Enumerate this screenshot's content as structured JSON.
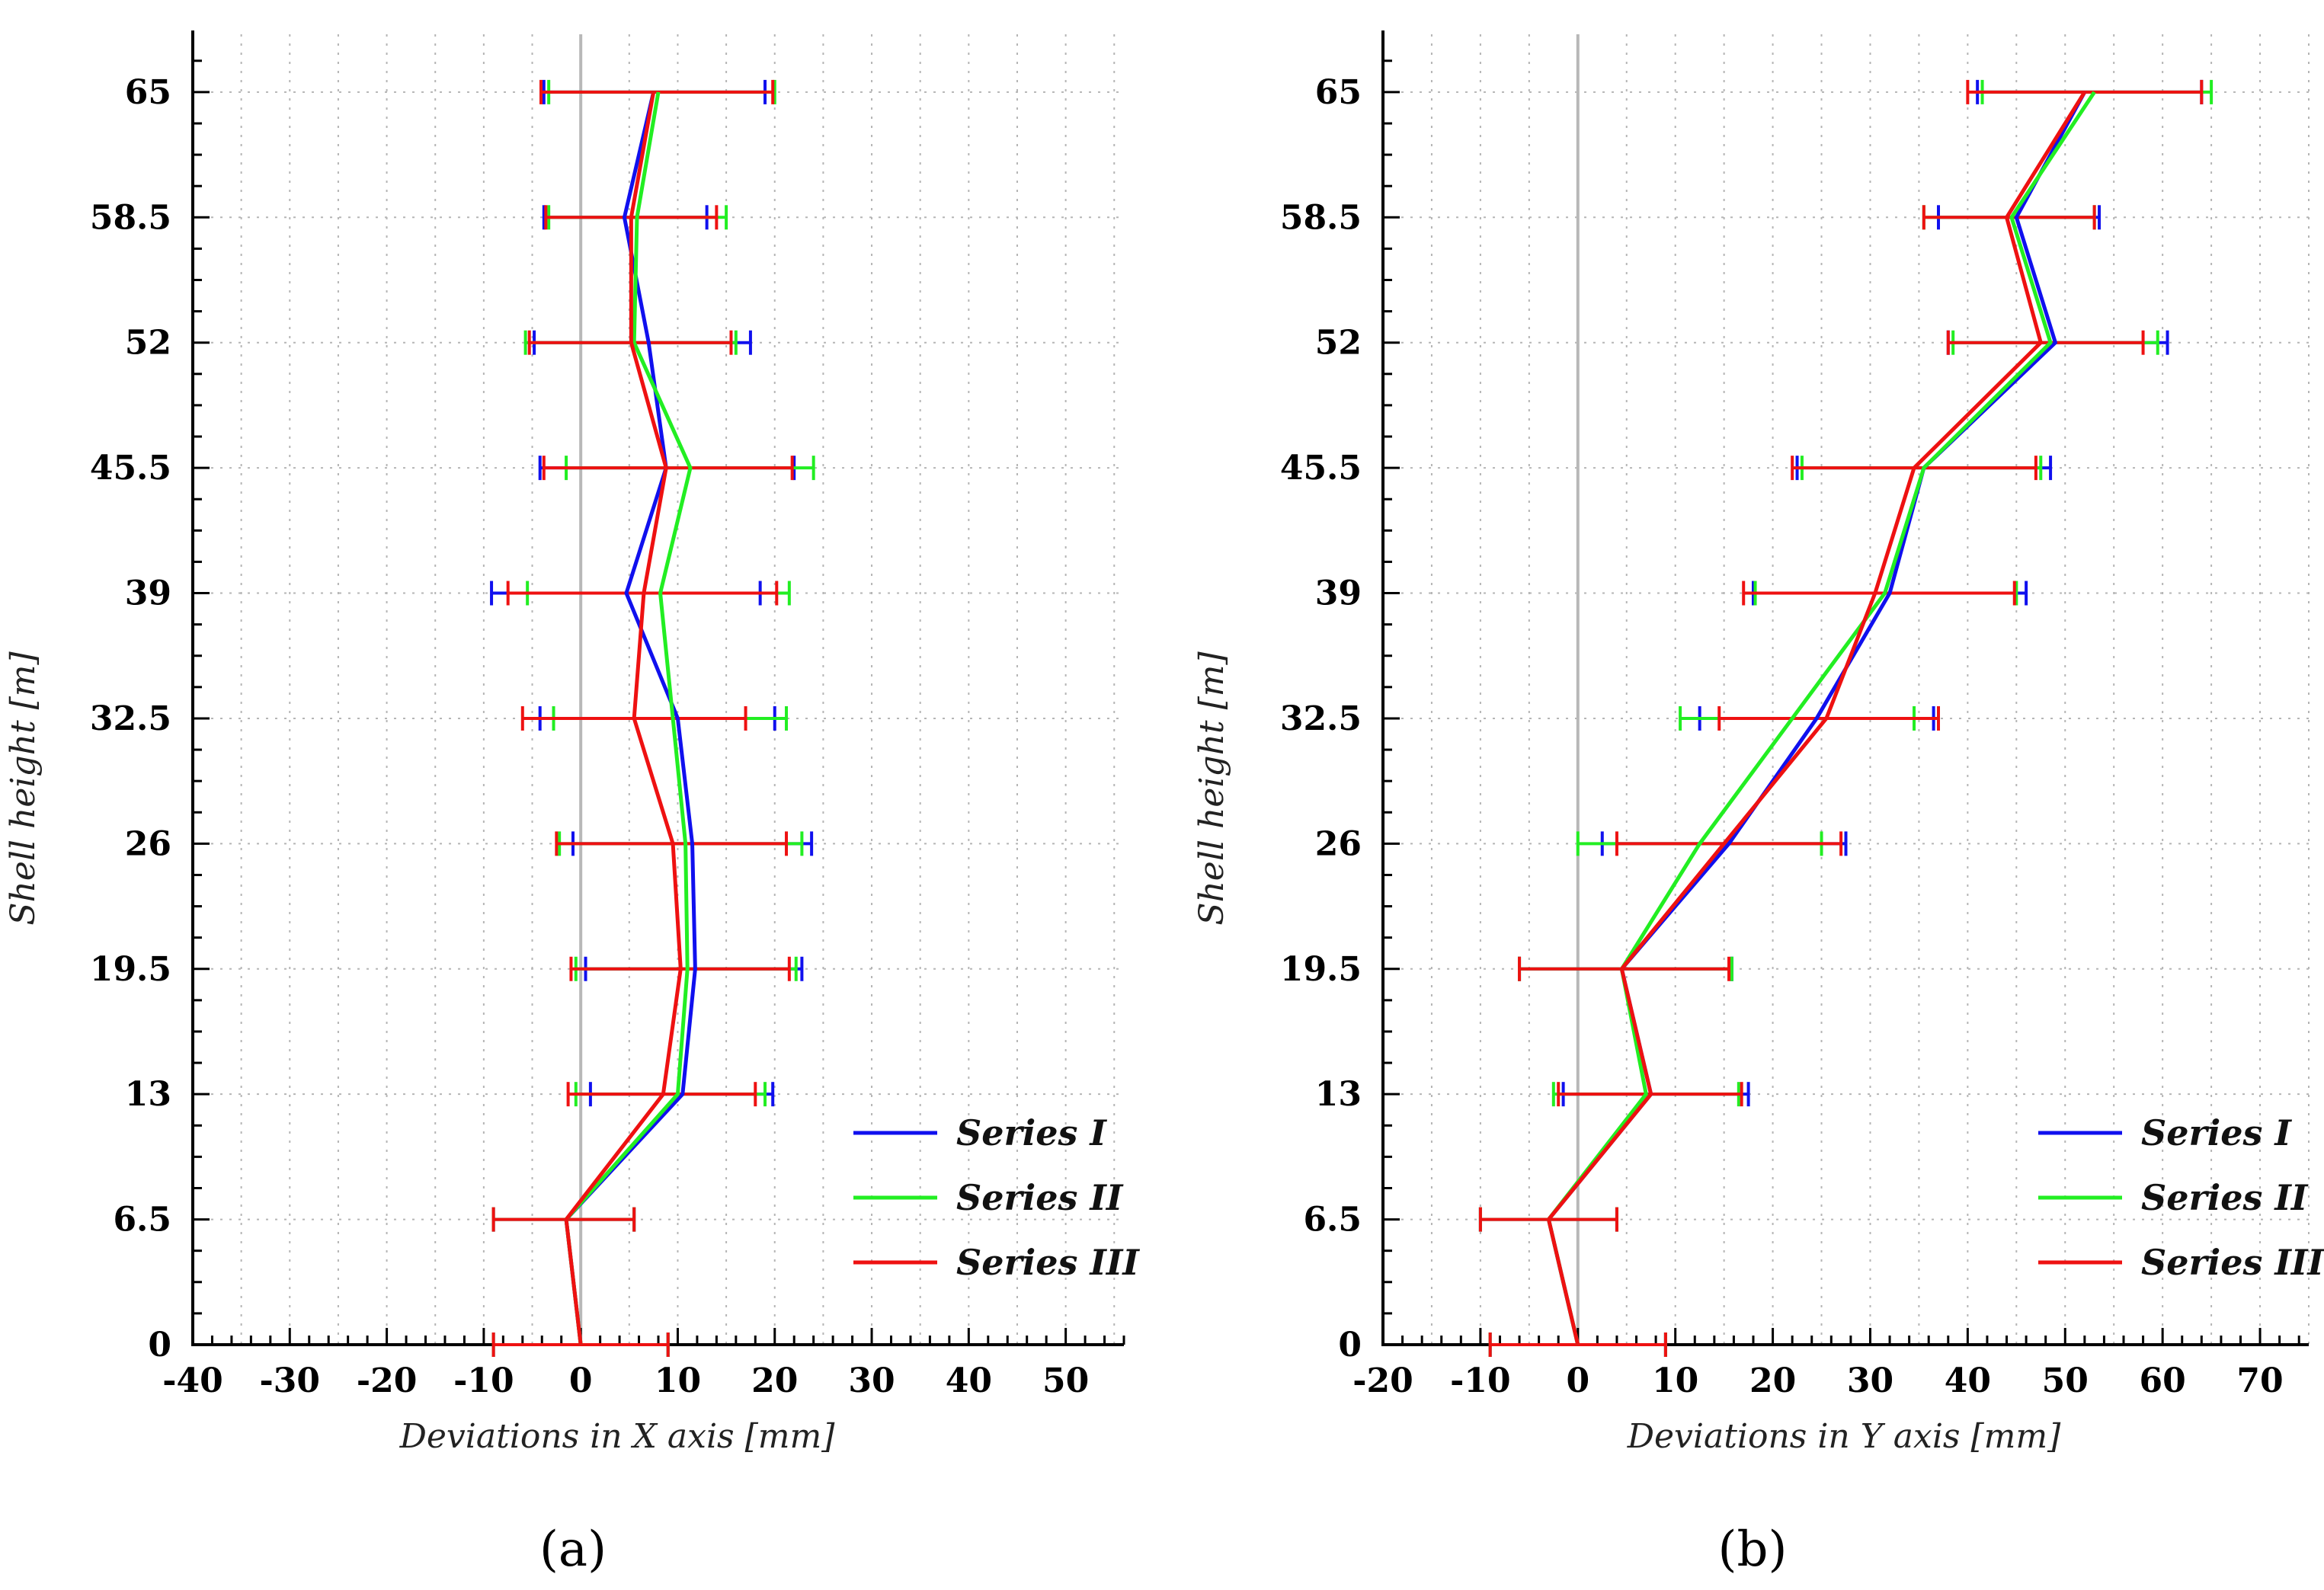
{
  "colors": {
    "series_1": "#1010ee",
    "series_2": "#22ee22",
    "series_3": "#ee1111"
  },
  "chart_data": [
    {
      "type": "line",
      "panel_label": "(a)",
      "xlabel": "Deviations in X axis  [mm]",
      "ylabel": "Shell height [m]",
      "xlim": [
        -40,
        56
      ],
      "ylim": [
        0,
        68
      ],
      "x_ticks": [
        -40,
        -30,
        -20,
        -10,
        0,
        10,
        20,
        30,
        40,
        50
      ],
      "x_tick_labels": [
        "-40",
        "-30",
        "-20",
        "-10",
        "0",
        "10",
        "20",
        "30",
        "40",
        "50"
      ],
      "y_ticks": [
        0,
        6.5,
        13,
        19.5,
        26,
        32.5,
        39,
        45.5,
        52,
        58.5,
        65
      ],
      "y_tick_labels": [
        "0",
        "6.5",
        "13",
        "19.5",
        "26",
        "32.5",
        "39",
        "45.5",
        "52",
        "58.5",
        "65"
      ],
      "legend_position": "bottom-right",
      "series": [
        {
          "name": "Series I",
          "y": [
            0,
            6.5,
            13,
            19.5,
            26,
            32.5,
            39,
            45.5,
            52,
            58.5,
            65
          ],
          "x": [
            0,
            -1.5,
            10.5,
            11.8,
            11.5,
            10,
            4.7,
            8.8,
            7,
            4.5,
            7.5
          ],
          "err_low": [
            -9,
            -9,
            1,
            0.5,
            -0.8,
            -4.2,
            -9.2,
            -4.2,
            -4.8,
            -3.8,
            -3.8
          ],
          "err_high": [
            9,
            5.5,
            19.8,
            22.8,
            23.8,
            20,
            18.5,
            22,
            17.5,
            13,
            19
          ]
        },
        {
          "name": "Series II",
          "y": [
            0,
            6.5,
            13,
            19.5,
            26,
            32.5,
            39,
            45.5,
            52,
            58.5,
            65
          ],
          "x": [
            0,
            -1.5,
            10,
            11,
            10.8,
            9.5,
            8.2,
            11.3,
            5.5,
            5.8,
            8
          ],
          "err_low": [
            -9,
            -9,
            -0.5,
            -0.5,
            -2.2,
            -2.8,
            -5.5,
            -1.5,
            -5.7,
            -3.3,
            -3.3
          ],
          "err_high": [
            9,
            5.5,
            19,
            22.2,
            22.8,
            21.2,
            21.5,
            24,
            16,
            15,
            20
          ]
        },
        {
          "name": "Series III",
          "y": [
            0,
            6.5,
            13,
            19.5,
            26,
            32.5,
            39,
            45.5,
            52,
            58.5,
            65
          ],
          "x": [
            0,
            -1.5,
            8.5,
            10.3,
            9.5,
            5.5,
            6.5,
            8.8,
            5.2,
            5.2,
            7.5
          ],
          "err_low": [
            -9,
            -9,
            -1.3,
            -1,
            -2.5,
            -6,
            -7.5,
            -3.8,
            -5.3,
            -3.6,
            -4.1
          ],
          "err_high": [
            9,
            5.5,
            18,
            21.5,
            21.2,
            17,
            20.2,
            21.8,
            15.5,
            14,
            19.8
          ]
        }
      ]
    },
    {
      "type": "line",
      "panel_label": "(b)",
      "xlabel": "Deviations in Y axis [mm]",
      "ylabel": "Shell height [m]",
      "xlim": [
        -20,
        75
      ],
      "ylim": [
        0,
        68
      ],
      "x_ticks": [
        -20,
        -10,
        0,
        10,
        20,
        30,
        40,
        50,
        60,
        70
      ],
      "x_tick_labels": [
        "-20",
        "-10",
        "0",
        "10",
        "20",
        "30",
        "40",
        "50",
        "60",
        "70"
      ],
      "y_ticks": [
        0,
        6.5,
        13,
        19.5,
        26,
        32.5,
        39,
        45.5,
        52,
        58.5,
        65
      ],
      "y_tick_labels": [
        "0",
        "6.5",
        "13",
        "19.5",
        "26",
        "32.5",
        "39",
        "45.5",
        "52",
        "58.5",
        "65"
      ],
      "legend_position": "bottom-right",
      "series": [
        {
          "name": "Series I",
          "y": [
            0,
            6.5,
            13,
            19.5,
            26,
            32.5,
            39,
            45.5,
            52,
            58.5,
            65
          ],
          "x": [
            0,
            -3,
            7.5,
            4.5,
            15.5,
            24.5,
            32,
            35.5,
            49,
            45,
            52
          ],
          "err_low": [
            -9,
            -10,
            -1.5,
            -6,
            2.5,
            12.5,
            18,
            22.5,
            38,
            37,
            41
          ],
          "err_high": [
            9,
            4,
            17.5,
            15.8,
            27.5,
            36.5,
            46,
            48.5,
            60.5,
            53.5,
            64
          ]
        },
        {
          "name": "Series II",
          "y": [
            0,
            6.5,
            13,
            19.5,
            26,
            32.5,
            39,
            45.5,
            52,
            58.5,
            65
          ],
          "x": [
            0,
            -3,
            7,
            4.5,
            12.5,
            22,
            31.5,
            35.5,
            48.5,
            44.5,
            53
          ],
          "err_low": [
            -9,
            -10,
            -2.5,
            -6,
            0,
            10.5,
            18.2,
            23,
            38.5,
            35.5,
            41.5
          ],
          "err_high": [
            9,
            4,
            16.5,
            15.8,
            25,
            34.5,
            45,
            47.5,
            59.5,
            53,
            65
          ]
        },
        {
          "name": "Series III",
          "y": [
            0,
            6.5,
            13,
            19.5,
            26,
            32.5,
            39,
            45.5,
            52,
            58.5,
            65
          ],
          "x": [
            0,
            -3,
            7.5,
            4.5,
            15,
            25.5,
            30.5,
            34.5,
            47.5,
            44,
            52
          ],
          "err_low": [
            -9,
            -10,
            -2,
            -6,
            4,
            14.5,
            17,
            22,
            38,
            35.5,
            40
          ],
          "err_high": [
            9,
            4,
            16.8,
            15.5,
            27,
            37,
            44.8,
            47,
            58,
            53,
            64
          ]
        }
      ]
    }
  ]
}
